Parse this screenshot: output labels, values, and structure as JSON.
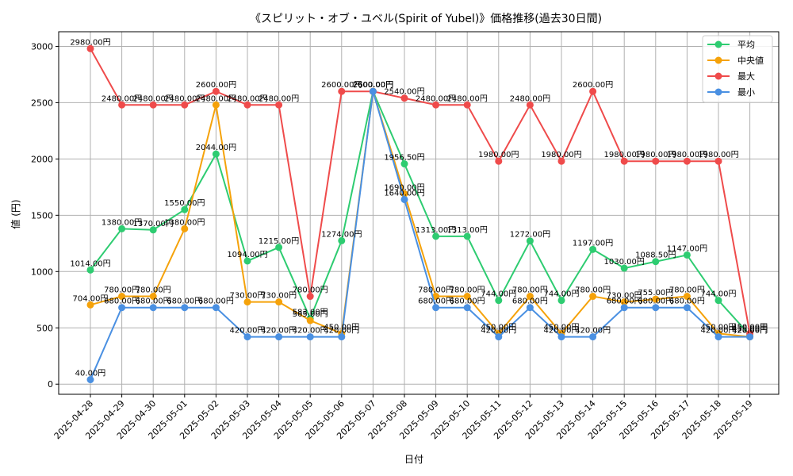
{
  "chart_data": {
    "type": "line",
    "title": "《スピリット・オブ・ユベル(Spirit of Yubel)》価格推移(過去30日間)",
    "xlabel": "日付",
    "ylabel": "値 (円)",
    "ylim": [
      -90,
      3130
    ],
    "yticks": [
      0,
      500,
      1000,
      1500,
      2000,
      2500,
      3000
    ],
    "grid": true,
    "legend_position": "top-right",
    "value_suffix": "円",
    "categories": [
      "2025-04-28",
      "2025-04-29",
      "2025-04-30",
      "2025-05-01",
      "2025-05-02",
      "2025-05-03",
      "2025-05-04",
      "2025-05-05",
      "2025-05-06",
      "2025-05-07",
      "2025-05-08",
      "2025-05-09",
      "2025-05-10",
      "2025-05-11",
      "2025-05-12",
      "2025-05-13",
      "2025-05-14",
      "2025-05-15",
      "2025-05-16",
      "2025-05-17",
      "2025-05-18",
      "2025-05-19"
    ],
    "series": [
      {
        "name": "平均",
        "color": "#2ecc71",
        "values": [
          1014,
          1380,
          1370,
          1550,
          2044,
          1094,
          1215,
          583,
          1274,
          2600,
          1956.5,
          1313,
          1313,
          744,
          1272,
          744,
          1197,
          1030,
          1088.5,
          1147,
          744,
          435
        ]
      },
      {
        "name": "中央値",
        "color": "#f5a20a",
        "values": [
          704,
          780,
          780,
          1380,
          2480,
          730,
          730,
          565,
          450,
          2600,
          1690,
          780,
          780,
          450,
          780,
          450,
          780,
          730,
          755,
          780,
          450,
          420
        ]
      },
      {
        "name": "最大",
        "color": "#ef4b4b",
        "values": [
          2980,
          2480,
          2480,
          2480,
          2600,
          2480,
          2480,
          780,
          2600,
          2600,
          2540,
          2480,
          2480,
          1980,
          2480,
          1980,
          2600,
          1980,
          1980,
          1980,
          1980,
          450
        ]
      },
      {
        "name": "最小",
        "color": "#4a90e2",
        "values": [
          40,
          680,
          680,
          680,
          680,
          420,
          420,
          420,
          420,
          2600,
          1640,
          680,
          680,
          420,
          680,
          420,
          420,
          680,
          680,
          680,
          420,
          420
        ]
      }
    ]
  }
}
